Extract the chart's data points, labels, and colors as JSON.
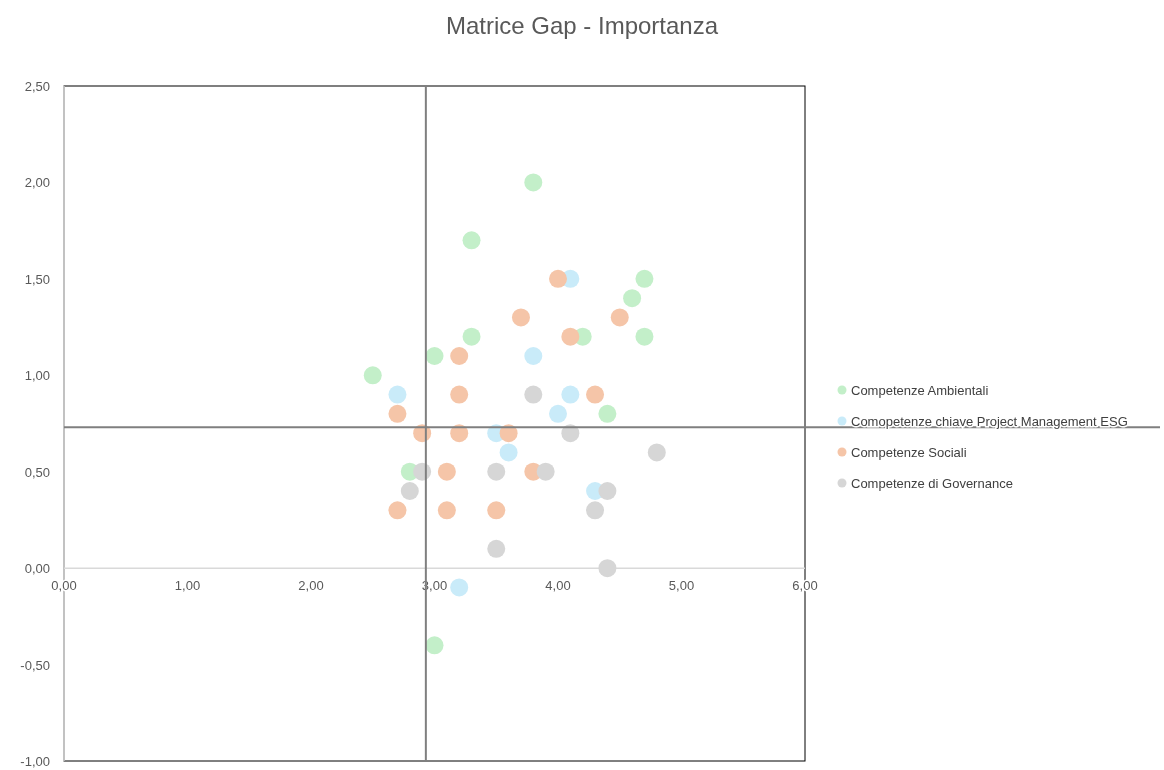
{
  "chart_data": {
    "type": "scatter",
    "title": "Matrice Gap - Importanza",
    "xlim": [
      0,
      6
    ],
    "xticks": [
      {
        "value": 0,
        "label": "0,00"
      },
      {
        "value": 1,
        "label": "1,00"
      },
      {
        "value": 2,
        "label": "2,00"
      },
      {
        "value": 3,
        "label": "3,00"
      },
      {
        "value": 4,
        "label": "4,00"
      },
      {
        "value": 5,
        "label": "5,00"
      },
      {
        "value": 6,
        "label": "6,00"
      }
    ],
    "ylim": [
      -1,
      2.5
    ],
    "yticks": [
      {
        "value": -1,
        "label": "-1,00"
      },
      {
        "value": -0.5,
        "label": "-0,50"
      },
      {
        "value": 0,
        "label": "0,00"
      },
      {
        "value": 0.5,
        "label": "0,50"
      },
      {
        "value": 1,
        "label": "1,00"
      },
      {
        "value": 1.5,
        "label": "1,50"
      },
      {
        "value": 2,
        "label": "2,00"
      },
      {
        "value": 2.5,
        "label": "2,50"
      }
    ],
    "marker": "circle",
    "legend": "right",
    "grid": false,
    "ref_lines": [
      {
        "axis": "x",
        "value": 2.93,
        "color": "#7f7f7f"
      },
      {
        "axis": "y",
        "value": 0.73,
        "color": "#7f7f7f"
      }
    ],
    "series": [
      {
        "name": "Competenze Ambientali",
        "color": "#c3efc9",
        "x": [
          3.8,
          3.3,
          4.7,
          4.6,
          4.2,
          4.7,
          3.3,
          3.0,
          2.5,
          4.4,
          2.8,
          3.0
        ],
        "values": [
          2.0,
          1.7,
          1.5,
          1.4,
          1.2,
          1.2,
          1.2,
          1.1,
          1.0,
          0.8,
          0.5,
          -0.4
        ]
      },
      {
        "name": "Comopetenze chiave Project Management ESG",
        "color": "#c9ebf9",
        "x": [
          4.1,
          3.8,
          2.7,
          4.1,
          4.0,
          3.5,
          3.6,
          4.3,
          3.2
        ],
        "values": [
          1.5,
          1.1,
          0.9,
          0.9,
          0.8,
          0.7,
          0.6,
          0.4,
          -0.1
        ]
      },
      {
        "name": "Competenze Sociali",
        "color": "#f5c5a8",
        "x": [
          4.0,
          3.7,
          4.5,
          3.2,
          4.1,
          3.2,
          4.3,
          2.7,
          2.9,
          3.2,
          3.6,
          3.1,
          3.8,
          2.7,
          3.1,
          3.5
        ],
        "values": [
          1.5,
          1.3,
          1.3,
          1.1,
          1.2,
          0.9,
          0.9,
          0.8,
          0.7,
          0.7,
          0.7,
          0.5,
          0.5,
          0.3,
          0.3,
          0.3
        ]
      },
      {
        "name": "Competenze di Governance",
        "color": "#d6d6d6",
        "x": [
          3.8,
          4.1,
          4.8,
          2.9,
          3.5,
          3.9,
          2.8,
          4.4,
          4.3,
          3.5,
          4.4
        ],
        "values": [
          0.9,
          0.7,
          0.6,
          0.5,
          0.5,
          0.5,
          0.4,
          0.4,
          0.3,
          0.1,
          0.0
        ]
      }
    ]
  }
}
